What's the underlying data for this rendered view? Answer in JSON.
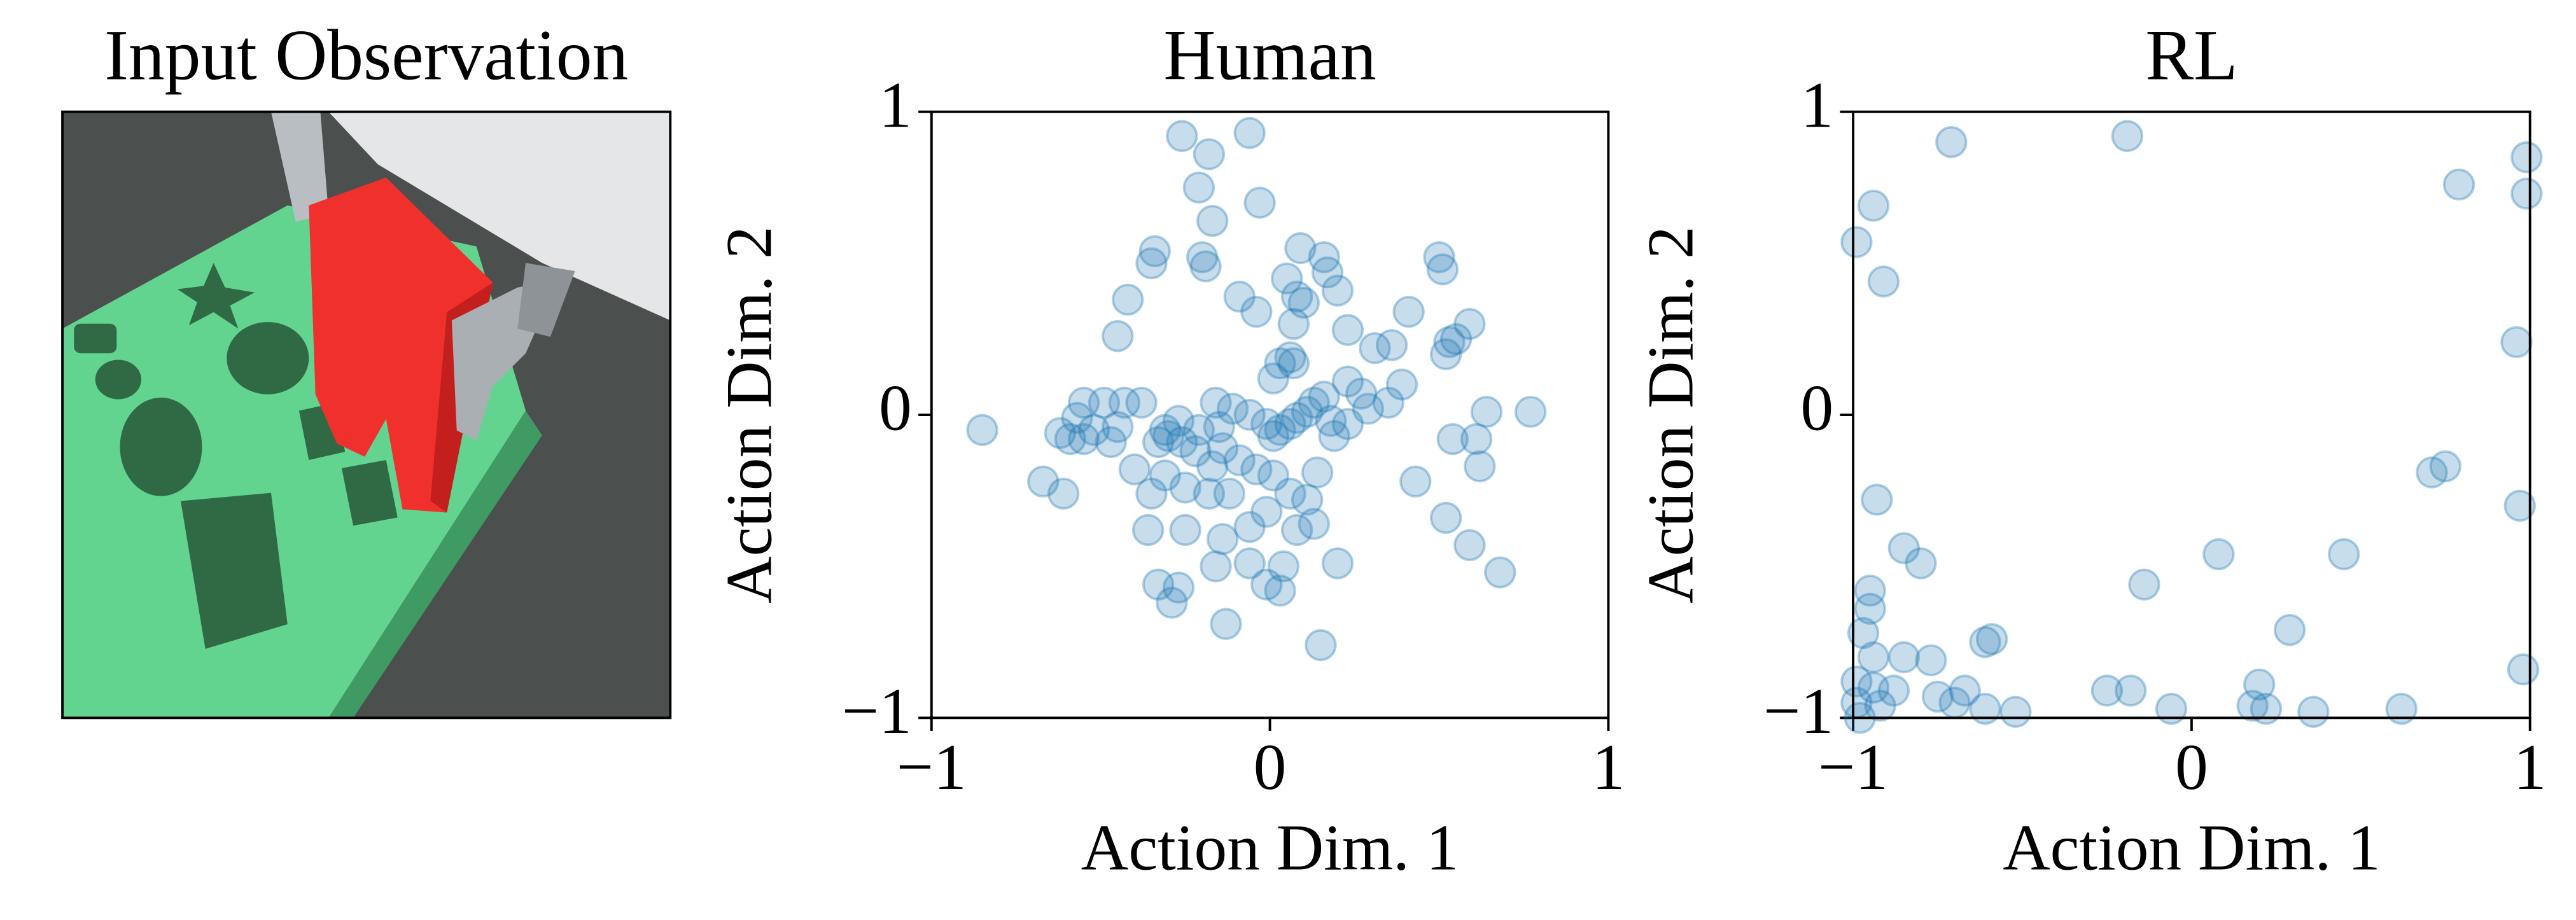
{
  "chart_data": [
    {
      "type": "image",
      "title": "Input Observation"
    },
    {
      "type": "scatter",
      "title": "Human",
      "x_label": "Action Dim. 1",
      "y_label": "Action Dim. 2",
      "xlim": [
        -1,
        1
      ],
      "ylim": [
        -1,
        1
      ],
      "xticks": [
        {
          "value": -1,
          "label": "−1"
        },
        0,
        1
      ],
      "yticks": [
        {
          "value": -1,
          "label": "−1"
        },
        0,
        1
      ],
      "color": "#1f77b4",
      "x": [
        -0.85,
        -0.26,
        -0.06,
        -0.18,
        -0.21,
        -0.17,
        -0.03,
        -0.34,
        -0.35,
        -0.2,
        -0.19,
        -0.42,
        -0.45,
        -0.09,
        -0.04,
        0.09,
        0.16,
        0.17,
        0.05,
        0.08,
        0.1,
        0.2,
        0.07,
        0.23,
        0.41,
        0.51,
        0.5,
        0.59,
        0.36,
        0.31,
        0.53,
        0.55,
        0.52,
        0.06,
        0.03,
        0.07,
        0.01,
        0.23,
        0.27,
        0.39,
        0.35,
        0.64,
        0.77,
        0.54,
        0.61,
        0.62,
        0.43,
        0.52,
        0.59,
        0.68,
        0.03,
        0.06,
        0.08,
        0.01,
        0.11,
        -0.01,
        -0.06,
        -0.11,
        -0.16,
        -0.15,
        -0.21,
        -0.14,
        -0.09,
        -0.04,
        0.01,
        0.06,
        0.11,
        0.13,
        0.08,
        -0.01,
        -0.06,
        -0.12,
        -0.18,
        -0.25,
        -0.31,
        -0.35,
        -0.4,
        -0.45,
        -0.47,
        -0.52,
        -0.55,
        -0.57,
        -0.55,
        -0.49,
        -0.43,
        -0.38,
        -0.31,
        -0.27,
        -0.3,
        -0.33,
        -0.26,
        -0.22,
        -0.17,
        -0.14,
        -0.25,
        -0.36,
        -0.33,
        -0.29,
        -0.27,
        -0.16,
        -0.06,
        0.04,
        0.03,
        -0.01,
        -0.13,
        0.15,
        0.2,
        0.14,
        0.19,
        0.18,
        0.13,
        0.16,
        0.23,
        0.29,
        -0.62,
        -0.59,
        -0.67,
        -0.61
      ],
      "y": [
        -0.05,
        0.92,
        0.93,
        0.86,
        0.75,
        0.64,
        0.7,
        0.54,
        0.5,
        0.52,
        0.49,
        0.38,
        0.26,
        0.39,
        0.34,
        0.55,
        0.52,
        0.47,
        0.45,
        0.39,
        0.37,
        0.41,
        0.3,
        0.28,
        0.34,
        0.48,
        0.52,
        0.3,
        0.23,
        0.22,
        0.24,
        0.25,
        0.2,
        0.19,
        0.17,
        0.17,
        0.12,
        0.11,
        0.07,
        0.1,
        0.04,
        0.01,
        0.01,
        -0.08,
        -0.08,
        -0.17,
        -0.22,
        -0.34,
        -0.43,
        -0.52,
        -0.05,
        -0.03,
        -0.01,
        -0.07,
        0.01,
        -0.03,
        0.0,
        0.02,
        0.04,
        -0.04,
        -0.05,
        -0.11,
        -0.15,
        -0.18,
        -0.2,
        -0.26,
        -0.28,
        -0.36,
        -0.38,
        -0.32,
        -0.37,
        -0.26,
        -0.26,
        -0.24,
        -0.2,
        -0.26,
        -0.18,
        -0.04,
        -0.09,
        -0.05,
        -0.08,
        -0.01,
        0.04,
        0.04,
        0.04,
        0.04,
        -0.05,
        -0.02,
        -0.07,
        -0.09,
        -0.09,
        -0.12,
        -0.17,
        -0.41,
        -0.38,
        -0.38,
        -0.56,
        -0.62,
        -0.57,
        -0.5,
        -0.49,
        -0.5,
        -0.58,
        -0.56,
        -0.69,
        -0.76,
        -0.49,
        -0.19,
        -0.07,
        -0.02,
        0.04,
        0.06,
        -0.03,
        0.02,
        -0.06,
        -0.08,
        -0.22,
        -0.26
      ]
    },
    {
      "type": "scatter",
      "title": "RL",
      "x_label": "Action Dim. 1",
      "y_label": "Action Dim. 2",
      "xlim": [
        -1,
        1
      ],
      "ylim": [
        -1,
        1
      ],
      "xticks": [
        {
          "value": -1,
          "label": "−1"
        },
        0,
        1
      ],
      "yticks": [
        {
          "value": -1,
          "label": "−1"
        },
        0,
        1
      ],
      "color": "#1f77b4",
      "x": [
        -0.71,
        -0.19,
        -0.99,
        -0.94,
        -0.91,
        0.79,
        0.99,
        0.99,
        0.96,
        -0.93,
        -0.85,
        -0.8,
        -0.95,
        -0.95,
        -0.97,
        -0.94,
        -0.85,
        -0.77,
        -0.99,
        -0.94,
        -0.88,
        -0.99,
        -0.92,
        -0.75,
        -0.7,
        -0.67,
        -0.61,
        -0.52,
        -0.59,
        -0.61,
        -0.14,
        0.08,
        0.45,
        0.29,
        0.71,
        0.75,
        0.97,
        0.98,
        -0.25,
        -0.18,
        -0.06,
        0.2,
        0.18,
        0.22,
        0.36,
        0.62,
        -0.98
      ],
      "y": [
        0.9,
        0.92,
        0.57,
        0.69,
        0.44,
        0.76,
        0.85,
        0.73,
        0.24,
        -0.28,
        -0.44,
        -0.49,
        -0.58,
        -0.64,
        -0.72,
        -0.8,
        -0.8,
        -0.81,
        -0.88,
        -0.9,
        -0.91,
        -0.95,
        -0.96,
        -0.93,
        -0.95,
        -0.91,
        -0.97,
        -0.98,
        -0.74,
        -0.75,
        -0.56,
        -0.46,
        -0.46,
        -0.71,
        -0.19,
        -0.17,
        -0.3,
        -0.84,
        -0.91,
        -0.91,
        -0.97,
        -0.89,
        -0.96,
        -0.97,
        -0.98,
        -0.97,
        -1.0
      ]
    }
  ]
}
